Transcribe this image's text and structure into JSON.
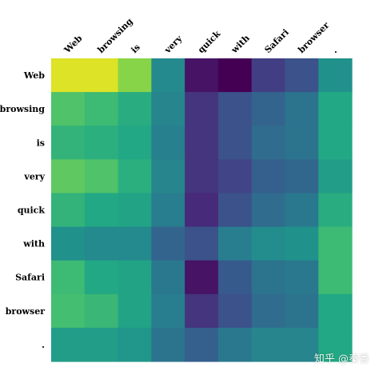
{
  "watermark": "知乎 @秦香",
  "chart_data": {
    "type": "heatmap",
    "x_labels": [
      "Web",
      "browsing",
      "is",
      "very",
      "quick",
      "with",
      "Safari",
      "browser",
      "."
    ],
    "y_labels": [
      "Web",
      "browsing",
      "is",
      "very",
      "quick",
      "with",
      "Safari",
      "browser",
      "."
    ],
    "colormap": "viridis",
    "value_range": [
      0,
      1
    ],
    "values": [
      [
        0.95,
        0.95,
        0.82,
        0.47,
        0.05,
        0.0,
        0.18,
        0.25,
        0.5
      ],
      [
        0.72,
        0.68,
        0.62,
        0.45,
        0.15,
        0.25,
        0.32,
        0.38,
        0.6
      ],
      [
        0.65,
        0.63,
        0.6,
        0.43,
        0.15,
        0.25,
        0.35,
        0.38,
        0.6
      ],
      [
        0.75,
        0.72,
        0.63,
        0.45,
        0.15,
        0.2,
        0.3,
        0.33,
        0.55
      ],
      [
        0.65,
        0.6,
        0.58,
        0.42,
        0.12,
        0.25,
        0.35,
        0.4,
        0.62
      ],
      [
        0.5,
        0.47,
        0.47,
        0.32,
        0.25,
        0.42,
        0.48,
        0.5,
        0.68
      ],
      [
        0.68,
        0.6,
        0.58,
        0.4,
        0.05,
        0.28,
        0.38,
        0.4,
        0.68
      ],
      [
        0.7,
        0.67,
        0.58,
        0.42,
        0.15,
        0.25,
        0.35,
        0.38,
        0.6
      ],
      [
        0.55,
        0.55,
        0.52,
        0.38,
        0.3,
        0.4,
        0.45,
        0.45,
        0.6
      ]
    ]
  }
}
